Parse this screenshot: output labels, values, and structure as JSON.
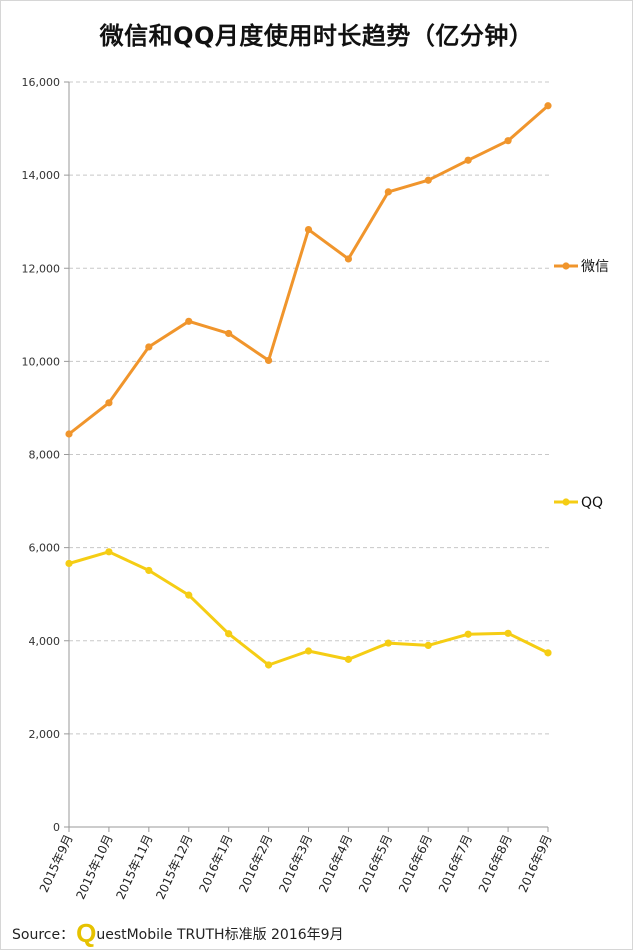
{
  "title": "微信和QQ月度使用时长趋势（亿分钟）",
  "source": {
    "prefix": "Source：",
    "logo_letter": "Q",
    "text": "uestMobile TRUTH标准版 2016年9月"
  },
  "chart_data": {
    "type": "line",
    "categories": [
      "2015年9月",
      "2015年10月",
      "2015年11月",
      "2015年12月",
      "2016年1月",
      "2016年2月",
      "2016年3月",
      "2016年4月",
      "2016年5月",
      "2016年6月",
      "2016年7月",
      "2016年8月",
      "2016年9月"
    ],
    "series": [
      {
        "name": "微信",
        "color": "#f0952c",
        "values": [
          8440,
          9110,
          10310,
          10860,
          10600,
          10020,
          12830,
          12200,
          13640,
          13890,
          14320,
          14740,
          15490
        ]
      },
      {
        "name": "QQ",
        "color": "#f5cd14",
        "values": [
          5660,
          5910,
          5510,
          4980,
          4150,
          3480,
          3780,
          3600,
          3950,
          3900,
          4140,
          4160,
          3740
        ]
      }
    ],
    "ylim": [
      0,
      16000
    ],
    "yticks": [
      "0",
      "2,000",
      "4,000",
      "6,000",
      "8,000",
      "10,000",
      "12,000",
      "14,000",
      "16,000"
    ],
    "grid": true,
    "legend_placement": "right"
  }
}
